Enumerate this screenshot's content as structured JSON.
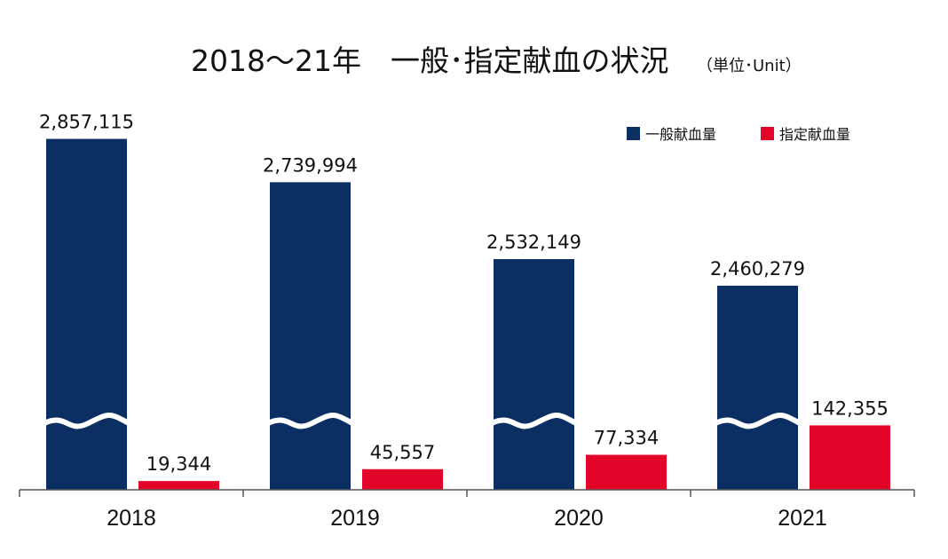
{
  "chart_data": {
    "type": "bar",
    "title": "2018～21年　一般･指定献血の状況",
    "unit_note": "（単位･Unit）",
    "categories": [
      "2018",
      "2019",
      "2020",
      "2021"
    ],
    "series": [
      {
        "name": "一般献血量",
        "color": "#0b2f63",
        "values": [
          2857115,
          2739994,
          2532149,
          2460279
        ],
        "labels": [
          "2,857,115",
          "2,739,994",
          "2,532,149",
          "2,460,279"
        ]
      },
      {
        "name": "指定献血量",
        "color": "#e3042a",
        "values": [
          19344,
          45557,
          77334,
          142355
        ],
        "labels": [
          "19,344",
          "45,557",
          "77,334",
          "142,355"
        ]
      }
    ],
    "axis_break": true,
    "legend_position": "top-right",
    "grid": false,
    "xlabel": "",
    "ylabel": ""
  }
}
